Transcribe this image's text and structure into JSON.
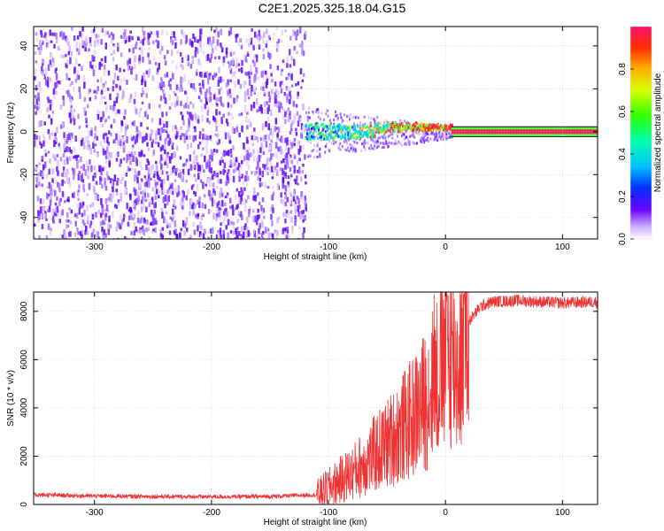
{
  "title": "C2E1.2025.325.18.04.G15",
  "chart_data": [
    {
      "type": "heatmap",
      "xlabel": "Height of straight line (km)",
      "ylabel": "Frequency (Hz)",
      "xlim": [
        -352,
        130
      ],
      "ylim": [
        -50,
        49
      ],
      "xticks": [
        -300,
        -200,
        -100,
        0,
        100
      ],
      "yticks": [
        -40,
        -20,
        0,
        20,
        40
      ],
      "colorbar": {
        "label": "Normalized spectral amplitude",
        "range": [
          0,
          1
        ],
        "ticks": [
          0.0,
          0.2,
          0.4,
          0.6,
          0.8
        ]
      },
      "regions": [
        {
          "x_range": [
            -352,
            -120
          ],
          "freq_range": [
            -50,
            49
          ],
          "amplitude": "0.1-0.2 scattered noise"
        },
        {
          "x_range": [
            -120,
            5
          ],
          "freq_range": [
            -5,
            5
          ],
          "amplitude": "0.3-0.9 mixed"
        },
        {
          "x_range": [
            5,
            130
          ],
          "freq_range": [
            -1,
            1
          ],
          "amplitude": "0.9-1.0 strong tone"
        }
      ],
      "grid": true
    },
    {
      "type": "line",
      "xlabel": "Height of straight line (km)",
      "ylabel": "SNR (10 * v/v)",
      "xlim": [
        -352,
        130
      ],
      "ylim": [
        0,
        8800
      ],
      "xticks": [
        -300,
        -200,
        -100,
        0,
        100
      ],
      "yticks": [
        0,
        2000,
        4000,
        6000,
        8000
      ],
      "color": "#ee3333",
      "series": [
        {
          "x": [
            -352,
            -300,
            -250,
            -200,
            -150,
            -110,
            -100,
            -90,
            -80,
            -70,
            -60,
            -50,
            -40,
            -30,
            -20,
            -15,
            -10,
            -5,
            0,
            5,
            10,
            15,
            20,
            30,
            40,
            60,
            80,
            100,
            130
          ],
          "values": [
            400,
            350,
            330,
            320,
            330,
            400,
            700,
            1000,
            1300,
            1700,
            2100,
            2500,
            3000,
            3500,
            4100,
            4500,
            5000,
            5500,
            6000,
            6400,
            5600,
            6800,
            7600,
            8200,
            8400,
            8450,
            8400,
            8350,
            8400
          ]
        }
      ],
      "grid": true
    }
  ]
}
